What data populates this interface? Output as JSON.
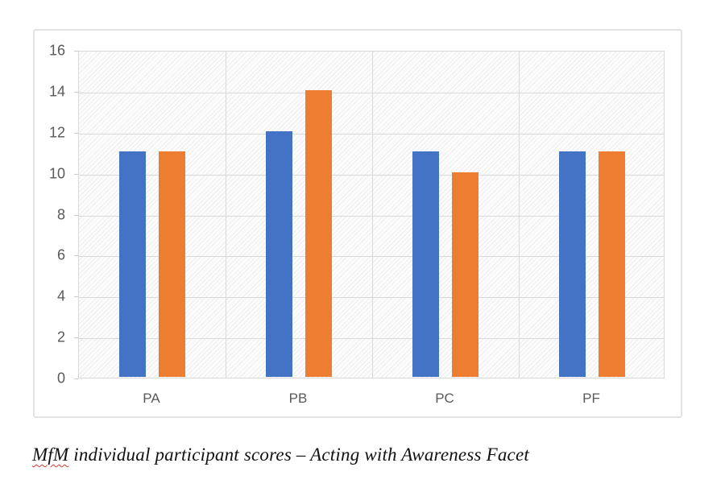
{
  "chart_data": {
    "type": "bar",
    "title": "",
    "xlabel": "",
    "ylabel": "",
    "categories": [
      "PA",
      "PB",
      "PC",
      "PF"
    ],
    "series": [
      {
        "name": "series-1-blue",
        "color": "#4472C4",
        "values": [
          11,
          12,
          11,
          11
        ]
      },
      {
        "name": "series-2-orange",
        "color": "#ED7D31",
        "values": [
          11,
          14,
          10,
          11
        ]
      }
    ],
    "ylim": [
      0,
      16
    ],
    "yticks": [
      0,
      2,
      4,
      6,
      8,
      10,
      12,
      14,
      16
    ],
    "grid": true,
    "legend_position": "none",
    "plot_area_fill": "light-upward-diagonal-hatch"
  },
  "chart_style": {
    "gridline_color": "#d9d9d9",
    "tick_color": "#c9c9c9",
    "axis_text_color": "#595959",
    "frame_border_color": "#e4e4e4",
    "hatch_line_color": "#ececec"
  },
  "caption": {
    "flagged_word": "MfM",
    "rest": " individual participant scores – Acting with Awareness Facet",
    "squiggle_color": "#d83a2e"
  }
}
